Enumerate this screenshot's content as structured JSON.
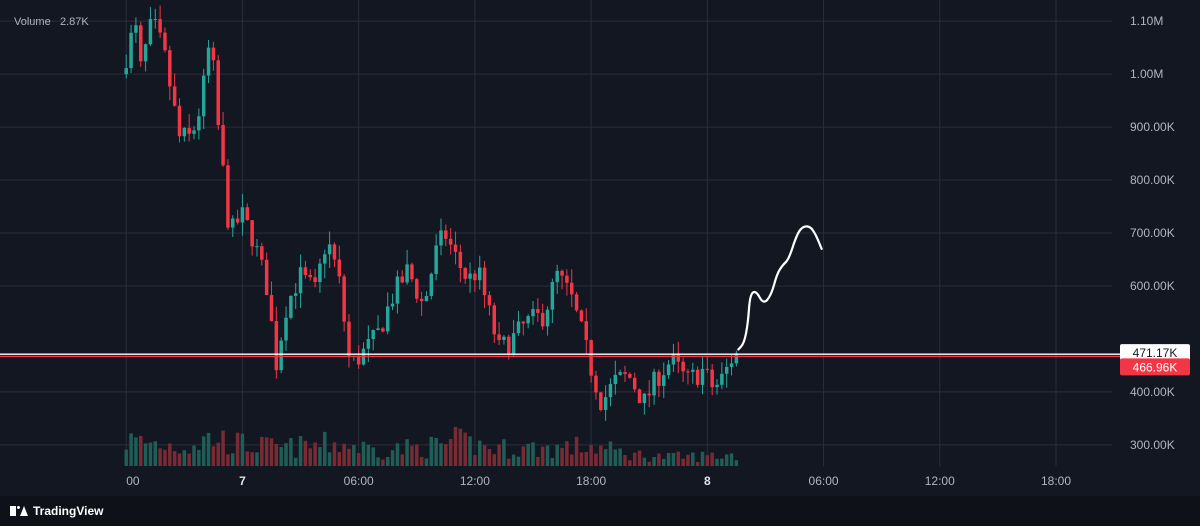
{
  "volume_label": "Volume",
  "volume_value": "2.87K",
  "footer": {
    "brand": "TradingView"
  },
  "chart_data": {
    "type": "candlestick",
    "y_ticks": [
      "1.10M",
      "1.00M",
      "900.00K",
      "800.00K",
      "700.00K",
      "600.00K",
      "400.00K",
      "300.00K"
    ],
    "y_tick_values": [
      1100000,
      1000000,
      900000,
      800000,
      700000,
      600000,
      400000,
      300000
    ],
    "ylim": [
      260000,
      1140000
    ],
    "x_ticks": [
      {
        "label": "00",
        "bold": false
      },
      {
        "label": "7",
        "bold": true
      },
      {
        "label": "06:00",
        "bold": false
      },
      {
        "label": "12:00",
        "bold": false
      },
      {
        "label": "18:00",
        "bold": false
      },
      {
        "label": "8",
        "bold": true
      },
      {
        "label": "06:00",
        "bold": false
      },
      {
        "label": "12:00",
        "bold": false
      },
      {
        "label": "18:00",
        "bold": false
      }
    ],
    "x_tick_hours": [
      0,
      6,
      12,
      18,
      24,
      30,
      36,
      42,
      48
    ],
    "hour_origin": -6,
    "candle_hours": 0.25,
    "price_lines": [
      {
        "label": "471.17K",
        "value": 471170,
        "line_color": "#ffffff",
        "bg": "#ffffff",
        "fg": "#131722"
      },
      {
        "label": "466.96K",
        "value": 466960,
        "line_color": "#f23645",
        "bg": "#f23645",
        "fg": "#ffffff"
      }
    ],
    "colors": {
      "up": "#26a69a",
      "down": "#f23645",
      "vol_up": "#1f5e57",
      "vol_down": "#7a2a33",
      "grid": "#2a2e39",
      "axis_text": "#b2b5be",
      "drawing": "#ffffff"
    },
    "anchors": [
      [
        0,
        1000000
      ],
      [
        0.7,
        1095000
      ],
      [
        1.0,
        1010000
      ],
      [
        1.6,
        1100000
      ],
      [
        2.2,
        1040000
      ],
      [
        3.0,
        880000
      ],
      [
        3.6,
        880000
      ],
      [
        4.1,
        940000
      ],
      [
        4.6,
        1070000
      ],
      [
        5.0,
        900000
      ],
      [
        5.6,
        695000
      ],
      [
        6.2,
        735000
      ],
      [
        6.8,
        690000
      ],
      [
        7.5,
        600000
      ],
      [
        8.0,
        455000
      ],
      [
        8.5,
        560000
      ],
      [
        9.2,
        620000
      ],
      [
        10.0,
        590000
      ],
      [
        10.6,
        690000
      ],
      [
        11.2,
        620000
      ],
      [
        11.8,
        450000
      ],
      [
        12.4,
        470000
      ],
      [
        13.2,
        505000
      ],
      [
        14.0,
        580000
      ],
      [
        14.8,
        630000
      ],
      [
        15.6,
        560000
      ],
      [
        16.2,
        660000
      ],
      [
        16.7,
        700000
      ],
      [
        17.3,
        650000
      ],
      [
        17.9,
        610000
      ],
      [
        18.4,
        630000
      ],
      [
        18.9,
        560000
      ],
      [
        19.5,
        480000
      ],
      [
        20.2,
        500000
      ],
      [
        20.9,
        530000
      ],
      [
        21.8,
        545000
      ],
      [
        22.5,
        620000
      ],
      [
        23.2,
        580000
      ],
      [
        23.7,
        520000
      ],
      [
        24.2,
        450000
      ],
      [
        24.8,
        380000
      ],
      [
        25.5,
        420000
      ],
      [
        26.2,
        430000
      ],
      [
        27.0,
        380000
      ],
      [
        27.7,
        430000
      ],
      [
        28.4,
        460000
      ],
      [
        29.2,
        420000
      ],
      [
        30.0,
        440000
      ],
      [
        30.6,
        405000
      ],
      [
        31.1,
        430000
      ],
      [
        31.6,
        470000
      ]
    ],
    "volume_anchors": [
      [
        0,
        1300
      ],
      [
        3,
        1000
      ],
      [
        4.5,
        1450
      ],
      [
        5.5,
        1150
      ],
      [
        8,
        900
      ],
      [
        11,
        1150
      ],
      [
        13,
        800
      ],
      [
        16,
        1000
      ],
      [
        17,
        1250
      ],
      [
        19,
        900
      ],
      [
        22,
        900
      ],
      [
        24,
        1000
      ],
      [
        26,
        600
      ],
      [
        28,
        450
      ],
      [
        31,
        550
      ]
    ],
    "vol_max": 6000,
    "drawing_path": [
      [
        31.6,
        480000
      ],
      [
        31.9,
        492000
      ],
      [
        32.1,
        530000
      ],
      [
        32.2,
        583000
      ],
      [
        32.5,
        592000
      ],
      [
        32.9,
        565000
      ],
      [
        33.3,
        583000
      ],
      [
        33.6,
        623000
      ],
      [
        33.9,
        640000
      ],
      [
        34.2,
        650000
      ],
      [
        34.6,
        695000
      ],
      [
        34.9,
        712000
      ],
      [
        35.3,
        713000
      ],
      [
        35.6,
        697000
      ],
      [
        35.9,
        670000
      ]
    ]
  }
}
